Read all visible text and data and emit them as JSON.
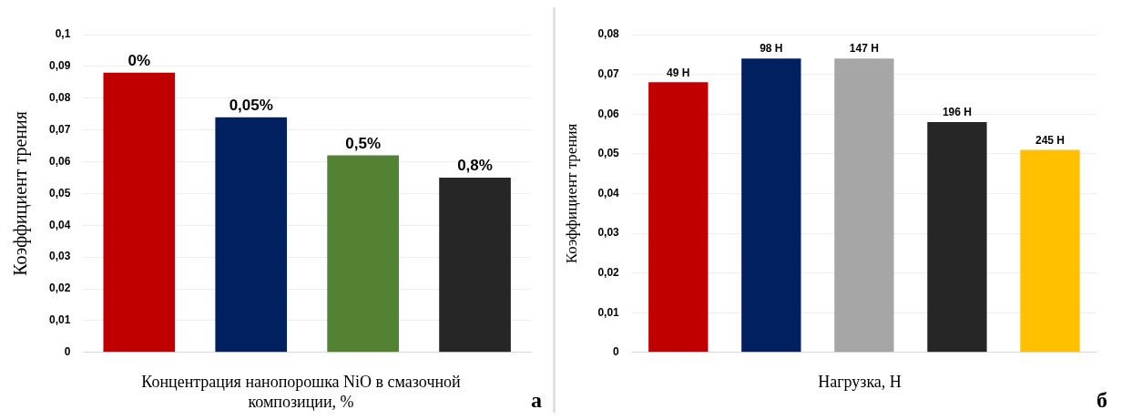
{
  "chart_data": [
    {
      "type": "bar",
      "ylabel": "Коэффициент трения",
      "xlabel": "Концентрация нанопорошка NiO в смазочной композиции, %",
      "categories": [
        "0%",
        "0,05%",
        "0,5%",
        "0,8%"
      ],
      "values": [
        0.088,
        0.074,
        0.062,
        0.055
      ],
      "colors": [
        "#c00000",
        "#002060",
        "#548235",
        "#262626"
      ],
      "ylim": [
        0,
        0.1
      ],
      "yticks": [
        {
          "value": 0,
          "label": "0"
        },
        {
          "value": 0.01,
          "label": "0,01"
        },
        {
          "value": 0.02,
          "label": "0,02"
        },
        {
          "value": 0.03,
          "label": "0,03"
        },
        {
          "value": 0.04,
          "label": "0,04"
        },
        {
          "value": 0.05,
          "label": "0,05"
        },
        {
          "value": 0.06,
          "label": "0,06"
        },
        {
          "value": 0.07,
          "label": "0,07"
        },
        {
          "value": 0.08,
          "label": "0,08"
        },
        {
          "value": 0.09,
          "label": "0,09"
        },
        {
          "value": 0.1,
          "label": "0,1"
        }
      ],
      "grid": "y",
      "tick_labels": "y",
      "annotations": [
        "а"
      ]
    },
    {
      "type": "bar",
      "ylabel": "Коэффициент трения",
      "xlabel": "Нагрузка, Н",
      "categories": [
        "49 Н",
        "98 Н",
        "147 Н",
        "196 Н",
        "245 Н"
      ],
      "values": [
        0.068,
        0.074,
        0.074,
        0.058,
        0.051
      ],
      "colors": [
        "#c00000",
        "#002060",
        "#a6a6a6",
        "#262626",
        "#ffc000"
      ],
      "ylim": [
        0,
        0.08
      ],
      "yticks": [
        {
          "value": 0,
          "label": "0"
        },
        {
          "value": 0.01,
          "label": "0,01"
        },
        {
          "value": 0.02,
          "label": "0,02"
        },
        {
          "value": 0.03,
          "label": "0,03"
        },
        {
          "value": 0.04,
          "label": "0,04"
        },
        {
          "value": 0.05,
          "label": "0,05"
        },
        {
          "value": 0.06,
          "label": "0,06"
        },
        {
          "value": 0.07,
          "label": "0,07"
        },
        {
          "value": 0.08,
          "label": "0,08"
        }
      ],
      "grid": "y",
      "tick_labels": "y",
      "annotations": [
        "б"
      ]
    }
  ]
}
